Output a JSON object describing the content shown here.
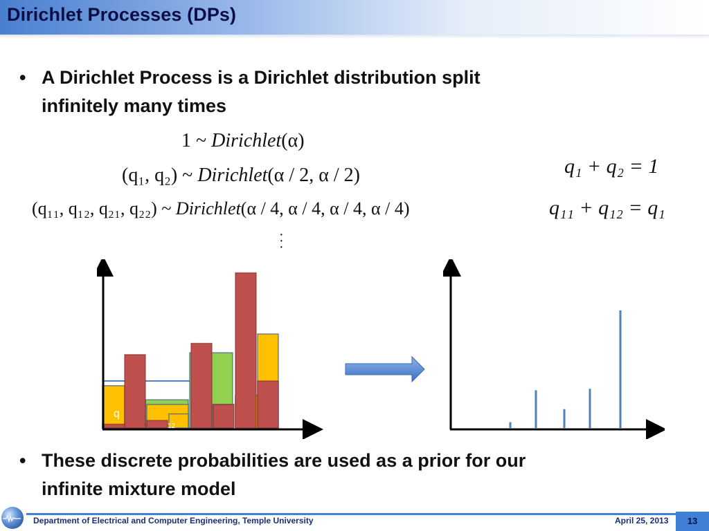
{
  "slide": {
    "title": "Dirichlet Processes (DPs)",
    "bullet1_line1": "A Dirichlet Process is a Dirichlet distribution split",
    "bullet1_line2": "infinitely many times",
    "bullet2_line1": "These discrete probabilities are used as a prior for our",
    "bullet2_line2": "infinite mixture model",
    "bullet_char": "•"
  },
  "equations": {
    "eq1": {
      "lhs": "1",
      "tilde": "~",
      "fn": "Dirichlet",
      "args": "(α)"
    },
    "eq2": {
      "lhs": "(q₁, q₂)",
      "tilde": "~",
      "fn": "Dirichlet",
      "args": "(α / 2, α / 2)"
    },
    "eq3": {
      "lhs": "(q₁₁, q₁₂, q₂₁, q₂₂)",
      "tilde": "~",
      "fn": "Dirichlet",
      "args": "(α / 4, α / 4, α / 4, α / 4)"
    },
    "sum1": "q₁ + q₂ = 1",
    "sum2": "q₁₁ + q₁₂ = q₁",
    "vdots": "⋮"
  },
  "figure": {
    "left_label_a": "q",
    "left_label_b": "12",
    "arrow_icon": "right-arrow-icon"
  },
  "chart_data": [
    {
      "type": "bar",
      "title": "",
      "note": "overlapping histogram bars (stick-breaking illustration)",
      "series": [
        {
          "color": "#c0504d",
          "values": [
            0.04,
            0.78,
            0.08,
            0.9,
            0.25,
            1.65,
            0.5
          ]
        },
        {
          "color": "#ffc000",
          "values": [
            0.45,
            0.25,
            0.15,
            0.25,
            0.35,
            1.0
          ]
        },
        {
          "color": "#92d050",
          "values": [
            0.3,
            0.8
          ]
        }
      ]
    },
    {
      "type": "bar",
      "title": "",
      "note": "discrete spikes",
      "values": [
        0.04,
        0.26,
        0.13,
        0.27,
        0.81
      ]
    }
  ],
  "footer": {
    "department": "Department of Electrical and Computer Engineering, Temple University",
    "date": "April 25, 2013",
    "page": "13"
  },
  "colors": {
    "accent": "#3f7fd6",
    "title": "#0b0e45",
    "bar_red": "#c0504d",
    "bar_orange": "#ffc000",
    "bar_green": "#92d050",
    "spike": "#4f81bd"
  }
}
